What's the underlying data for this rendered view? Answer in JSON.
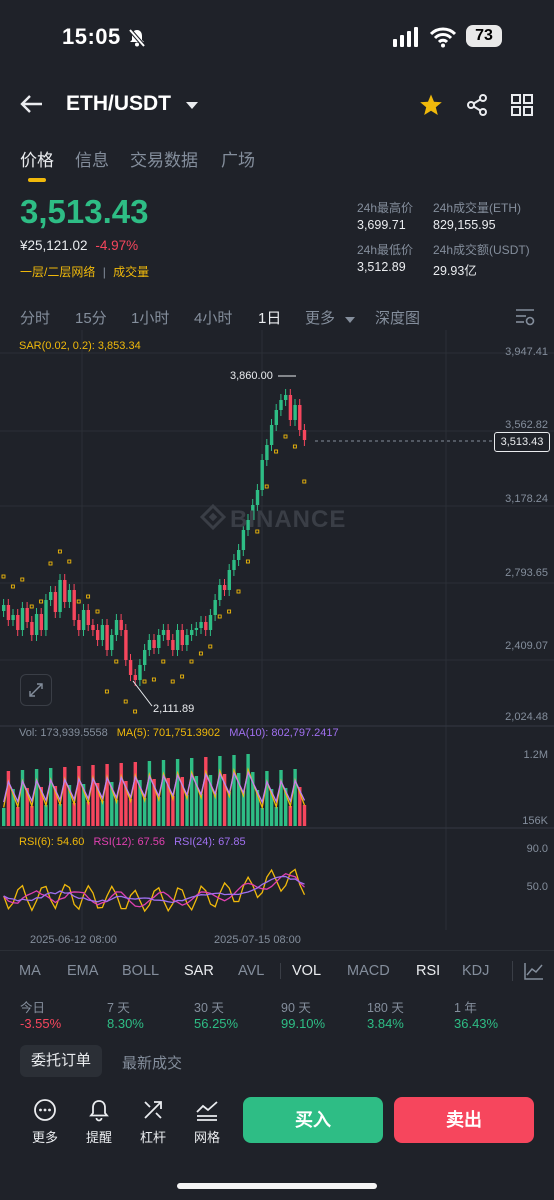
{
  "status_bar": {
    "time": "15:05",
    "battery": "73"
  },
  "header": {
    "pair": "ETH/USDT"
  },
  "tabs": [
    "价格",
    "信息",
    "交易数据",
    "广场"
  ],
  "price": {
    "last": "3,513.43",
    "cny": "¥25,121.02",
    "change": "-4.97%",
    "network": "一层/二层网络",
    "tag": "成交量"
  },
  "stats": {
    "high_label": "24h最高价",
    "high": "3,699.71",
    "vol_eth_label": "24h成交量(ETH)",
    "vol_eth": "829,155.95",
    "low_label": "24h最低价",
    "low": "3,512.89",
    "vol_usdt_label": "24h成交额(USDT)",
    "vol_usdt": "29.93亿"
  },
  "intervals": [
    "分时",
    "15分",
    "1小时",
    "4小时",
    "1日",
    "更多",
    "深度图"
  ],
  "chart_labels": {
    "sar": "SAR(0.02, 0.2): 3,853.34",
    "watermark": "BINANCE",
    "price_ticks": [
      "3,947.41",
      "3,562.82",
      "3,178.24",
      "2,793.65",
      "2,409.07",
      "2,024.48"
    ],
    "high_marker": "3,860.00",
    "low_marker": "2,111.89",
    "current_marker": "3,513.43",
    "vol": "Vol: 173,939.5558",
    "ma5": "MA(5): 701,751.3902",
    "ma10": "MA(10): 802,797.2417",
    "vol_ticks": [
      "1.2M",
      "156K"
    ],
    "rsi6": "RSI(6): 54.60",
    "rsi12": "RSI(12): 67.56",
    "rsi24": "RSI(24): 67.85",
    "rsi_ticks": [
      "90.0",
      "50.0"
    ],
    "date_ticks": [
      "2025-06-12 08:00",
      "2025-07-15 08:00"
    ]
  },
  "indicator_tabs": [
    "MA",
    "EMA",
    "BOLL",
    "SAR",
    "AVL",
    "VOL",
    "MACD",
    "RSI",
    "KDJ"
  ],
  "performance": [
    {
      "label": "今日",
      "value": "-3.55%"
    },
    {
      "label": "7 天",
      "value": "8.30%"
    },
    {
      "label": "30 天",
      "value": "56.25%"
    },
    {
      "label": "90 天",
      "value": "99.10%"
    },
    {
      "label": "180 天",
      "value": "3.84%"
    },
    {
      "label": "1 年",
      "value": "36.43%"
    }
  ],
  "orders": {
    "tab_active": "委托订单",
    "tab_other": "最新成交"
  },
  "bottom": {
    "more": "更多",
    "alert": "提醒",
    "leverage": "杠杆",
    "grid": "网格",
    "buy": "买入",
    "sell": "卖出"
  },
  "colors": {
    "up": "#2ebd85",
    "down": "#f6465d",
    "accent": "#f0b90b",
    "bg": "#1f2229"
  }
}
